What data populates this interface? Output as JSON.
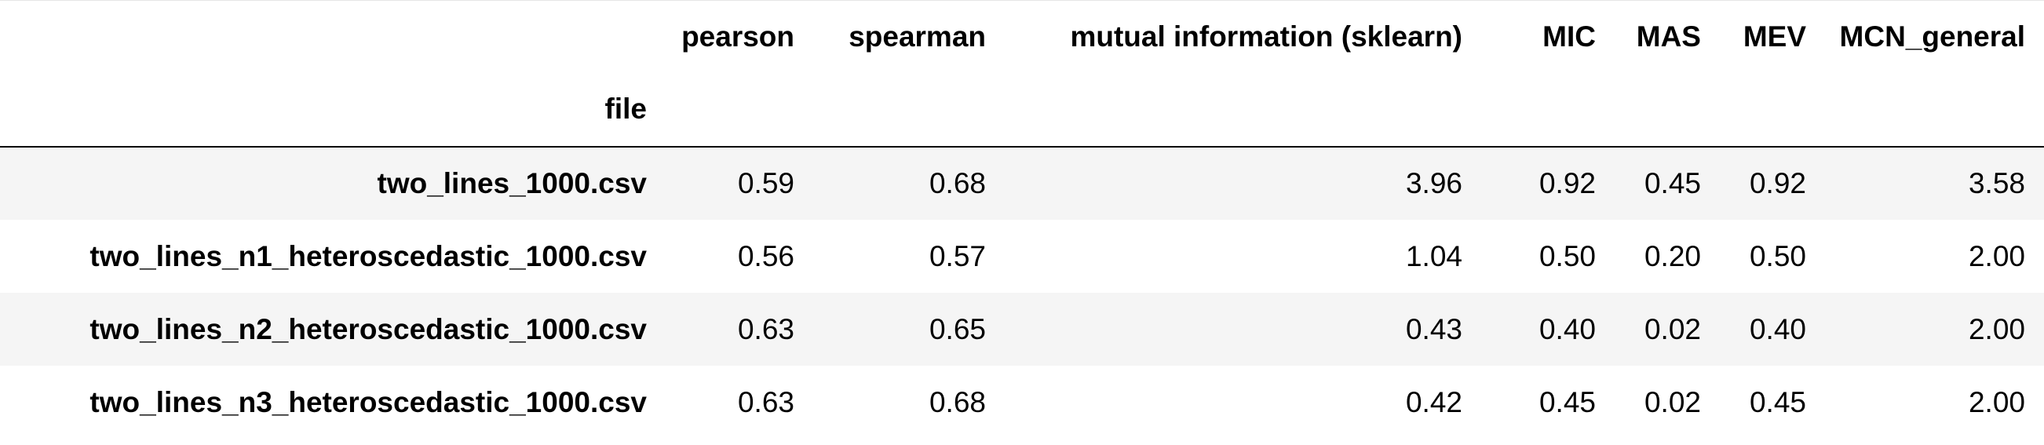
{
  "table": {
    "columns": [
      "pearson",
      "spearman",
      "mutual information (sklearn)",
      "MIC",
      "MAS",
      "MEV",
      "MCN_general"
    ],
    "index_name": "file",
    "rows": [
      {
        "file": "two_lines_1000.csv",
        "values": [
          "0.59",
          "0.68",
          "3.96",
          "0.92",
          "0.45",
          "0.92",
          "3.58"
        ]
      },
      {
        "file": "two_lines_n1_heteroscedastic_1000.csv",
        "values": [
          "0.56",
          "0.57",
          "1.04",
          "0.50",
          "0.20",
          "0.50",
          "2.00"
        ]
      },
      {
        "file": "two_lines_n2_heteroscedastic_1000.csv",
        "values": [
          "0.63",
          "0.65",
          "0.43",
          "0.40",
          "0.02",
          "0.40",
          "2.00"
        ]
      },
      {
        "file": "two_lines_n3_heteroscedastic_1000.csv",
        "values": [
          "0.63",
          "0.68",
          "0.42",
          "0.45",
          "0.02",
          "0.45",
          "2.00"
        ]
      }
    ]
  },
  "chart_data": {
    "type": "table",
    "columns": [
      "pearson",
      "spearman",
      "mutual information (sklearn)",
      "MIC",
      "MAS",
      "MEV",
      "MCN_general"
    ],
    "index_name": "file",
    "index": [
      "two_lines_1000.csv",
      "two_lines_n1_heteroscedastic_1000.csv",
      "two_lines_n2_heteroscedastic_1000.csv",
      "two_lines_n3_heteroscedastic_1000.csv"
    ],
    "values": [
      [
        0.59,
        0.68,
        3.96,
        0.92,
        0.45,
        0.92,
        3.58
      ],
      [
        0.56,
        0.57,
        1.04,
        0.5,
        0.2,
        0.5,
        2.0
      ],
      [
        0.63,
        0.65,
        0.43,
        0.4,
        0.02,
        0.4,
        2.0
      ],
      [
        0.63,
        0.68,
        0.42,
        0.45,
        0.02,
        0.45,
        2.0
      ]
    ]
  }
}
